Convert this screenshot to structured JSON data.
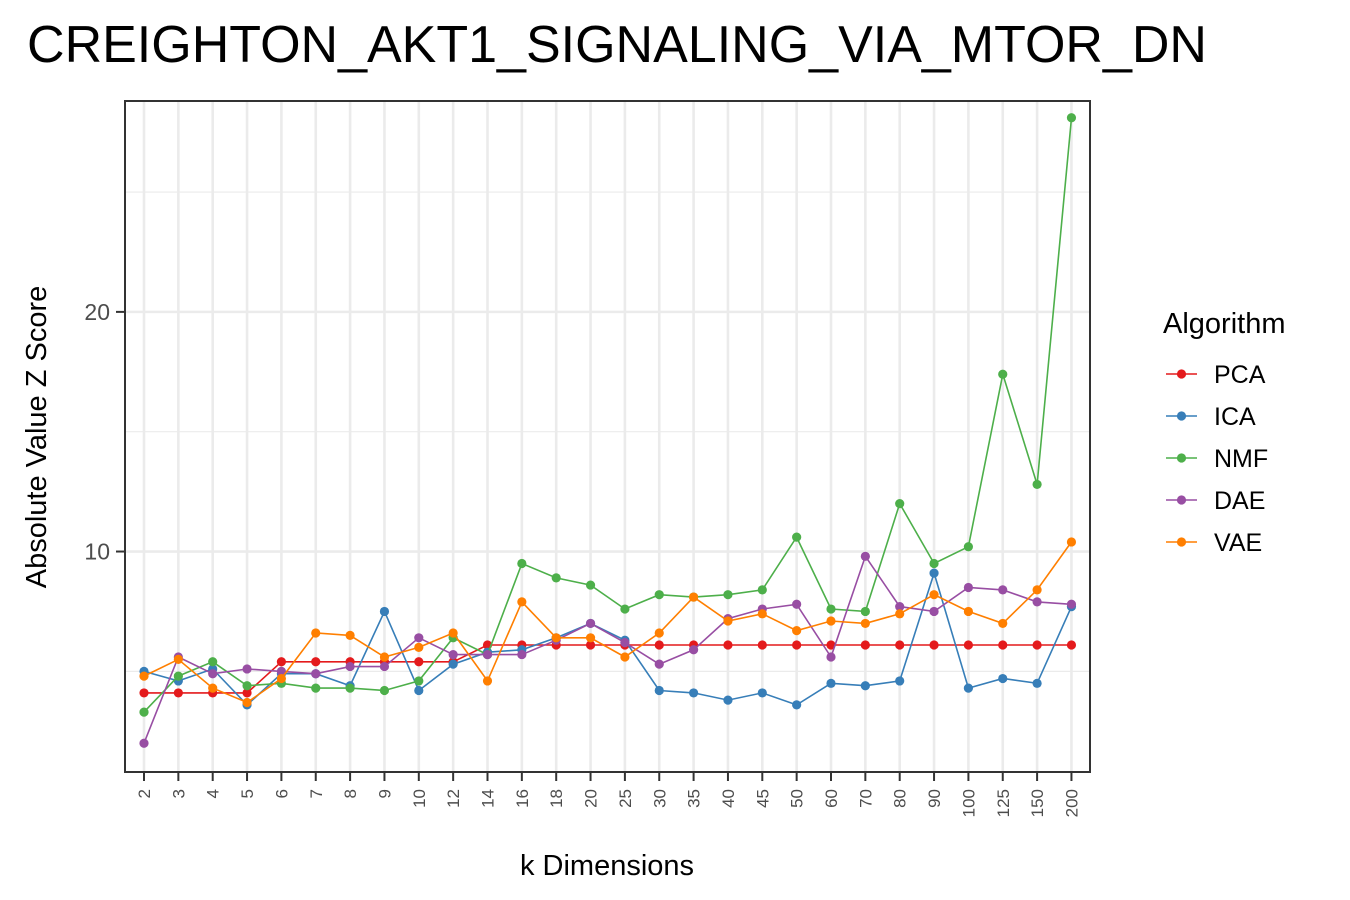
{
  "chart_data": {
    "type": "line",
    "title": "CREIGHTON_AKT1_SIGNALING_VIA_MTOR_DN",
    "xlabel": "k Dimensions",
    "ylabel": "Absolute Value Z Score",
    "ylim": [
      0.8,
      28.8
    ],
    "yticks": [
      10,
      20
    ],
    "grid": true,
    "legend": {
      "title": "Algorithm",
      "position": "right"
    },
    "categories": [
      "2",
      "3",
      "4",
      "5",
      "6",
      "7",
      "8",
      "9",
      "10",
      "12",
      "14",
      "16",
      "18",
      "20",
      "25",
      "30",
      "35",
      "40",
      "45",
      "50",
      "60",
      "70",
      "80",
      "90",
      "100",
      "125",
      "150",
      "200"
    ],
    "series": [
      {
        "name": "PCA",
        "color": "#e41a1c",
        "values": [
          4.1,
          4.1,
          4.1,
          4.1,
          5.4,
          5.4,
          5.4,
          5.4,
          5.4,
          5.4,
          6.1,
          6.1,
          6.1,
          6.1,
          6.1,
          6.1,
          6.1,
          6.1,
          6.1,
          6.1,
          6.1,
          6.1,
          6.1,
          6.1,
          6.1,
          6.1,
          6.1,
          6.1
        ]
      },
      {
        "name": "ICA",
        "color": "#377eb8",
        "values": [
          5.0,
          4.6,
          5.1,
          3.6,
          4.9,
          4.9,
          4.4,
          7.5,
          4.2,
          5.3,
          5.8,
          5.9,
          6.4,
          7.0,
          6.3,
          4.2,
          4.1,
          3.8,
          4.1,
          3.6,
          4.5,
          4.4,
          4.6,
          9.1,
          4.3,
          4.7,
          4.5,
          7.7
        ]
      },
      {
        "name": "NMF",
        "color": "#4daf4a",
        "values": [
          3.3,
          4.8,
          5.4,
          4.4,
          4.5,
          4.3,
          4.3,
          4.2,
          4.6,
          6.4,
          5.7,
          9.5,
          8.9,
          8.6,
          7.6,
          8.2,
          8.1,
          8.2,
          8.4,
          10.6,
          7.6,
          7.5,
          12.0,
          9.5,
          10.2,
          17.4,
          12.8,
          28.1
        ]
      },
      {
        "name": "DAE",
        "color": "#984ea3",
        "values": [
          2.0,
          5.6,
          4.9,
          5.1,
          5.0,
          4.9,
          5.2,
          5.2,
          6.4,
          5.7,
          5.7,
          5.7,
          6.3,
          7.0,
          6.2,
          5.3,
          5.9,
          7.2,
          7.6,
          7.8,
          5.6,
          9.8,
          7.7,
          7.5,
          8.5,
          8.4,
          7.9,
          7.8
        ]
      },
      {
        "name": "VAE",
        "color": "#ff7f00",
        "values": [
          4.8,
          5.5,
          4.3,
          3.7,
          4.7,
          6.6,
          6.5,
          5.6,
          6.0,
          6.6,
          4.6,
          7.9,
          6.4,
          6.4,
          5.6,
          6.6,
          8.1,
          7.1,
          7.4,
          6.7,
          7.1,
          7.0,
          7.4,
          8.2,
          7.5,
          7.0,
          8.4,
          10.4
        ]
      }
    ]
  }
}
